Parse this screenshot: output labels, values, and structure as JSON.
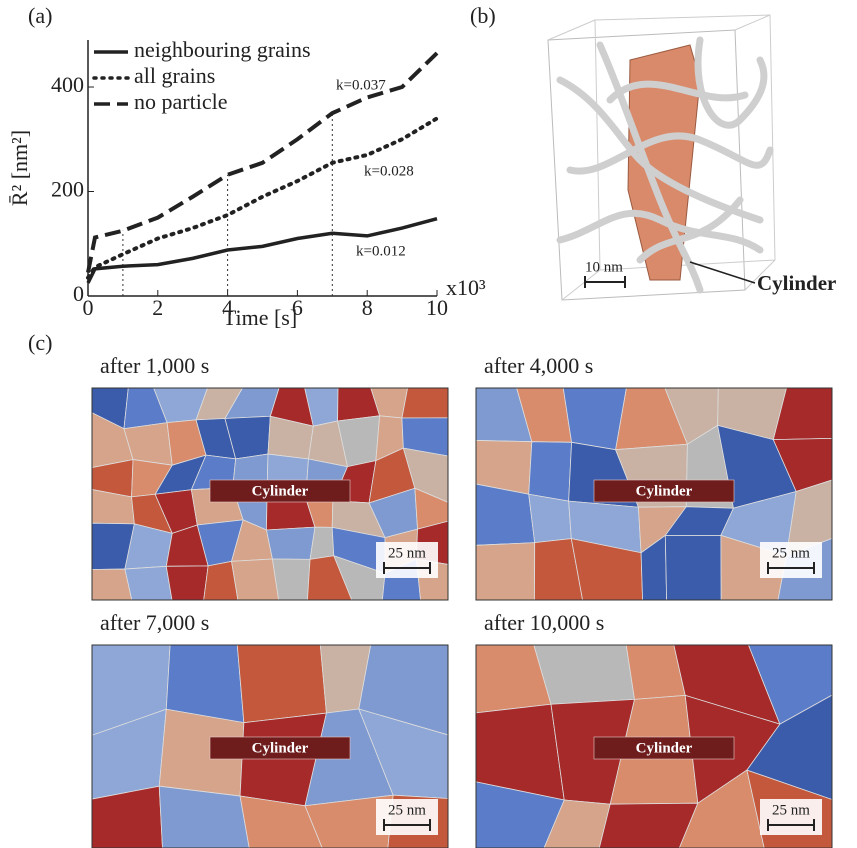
{
  "chart_data": {
    "type": "line",
    "panel_label": "(a)",
    "xlabel": "Time [s]",
    "ylabel": "R̄² [nm²]",
    "x_multiplier": "x10³",
    "x": [
      0,
      0.2,
      1,
      2,
      3,
      4,
      5,
      6,
      7,
      8,
      9,
      10
    ],
    "series": [
      {
        "name": "neighbouring grains",
        "color": "#222222",
        "style": "solid",
        "values": [
          25,
          52,
          57,
          60,
          72,
          88,
          95,
          110,
          120,
          115,
          130,
          148
        ]
      },
      {
        "name": "all grains",
        "color": "#222222",
        "style": "dotted",
        "values": [
          35,
          55,
          80,
          110,
          130,
          155,
          190,
          220,
          255,
          270,
          300,
          340
        ]
      },
      {
        "name": "no particle",
        "color": "#222222",
        "style": "dashed",
        "values": [
          45,
          112,
          125,
          150,
          190,
          232,
          255,
          300,
          350,
          380,
          400,
          465
        ]
      }
    ],
    "annotations": [
      "k=0.037",
      "k=0.028",
      "k=0.012"
    ],
    "vlines": [
      1,
      4,
      7
    ],
    "xlim": [
      0,
      10
    ],
    "xticks": [
      0,
      2,
      4,
      6,
      8,
      10
    ],
    "ylim": [
      0,
      490
    ],
    "yticks": [
      0,
      200,
      400
    ],
    "legend": "upper left"
  },
  "panel_b": {
    "label": "(b)",
    "scale": "10 nm",
    "callout": "Cylinder"
  },
  "panel_c": {
    "label": "(c)",
    "snapshots": [
      {
        "title": "after 1,000 s",
        "particle": "Cylinder",
        "scale": "25 nm"
      },
      {
        "title": "after 4,000 s",
        "particle": "Cylinder",
        "scale": "25 nm"
      },
      {
        "title": "after 7,000 s",
        "particle": "Cylinder",
        "scale": "25 nm"
      },
      {
        "title": "after 10,000 s",
        "particle": "Cylinder",
        "scale": "25 nm"
      }
    ]
  }
}
